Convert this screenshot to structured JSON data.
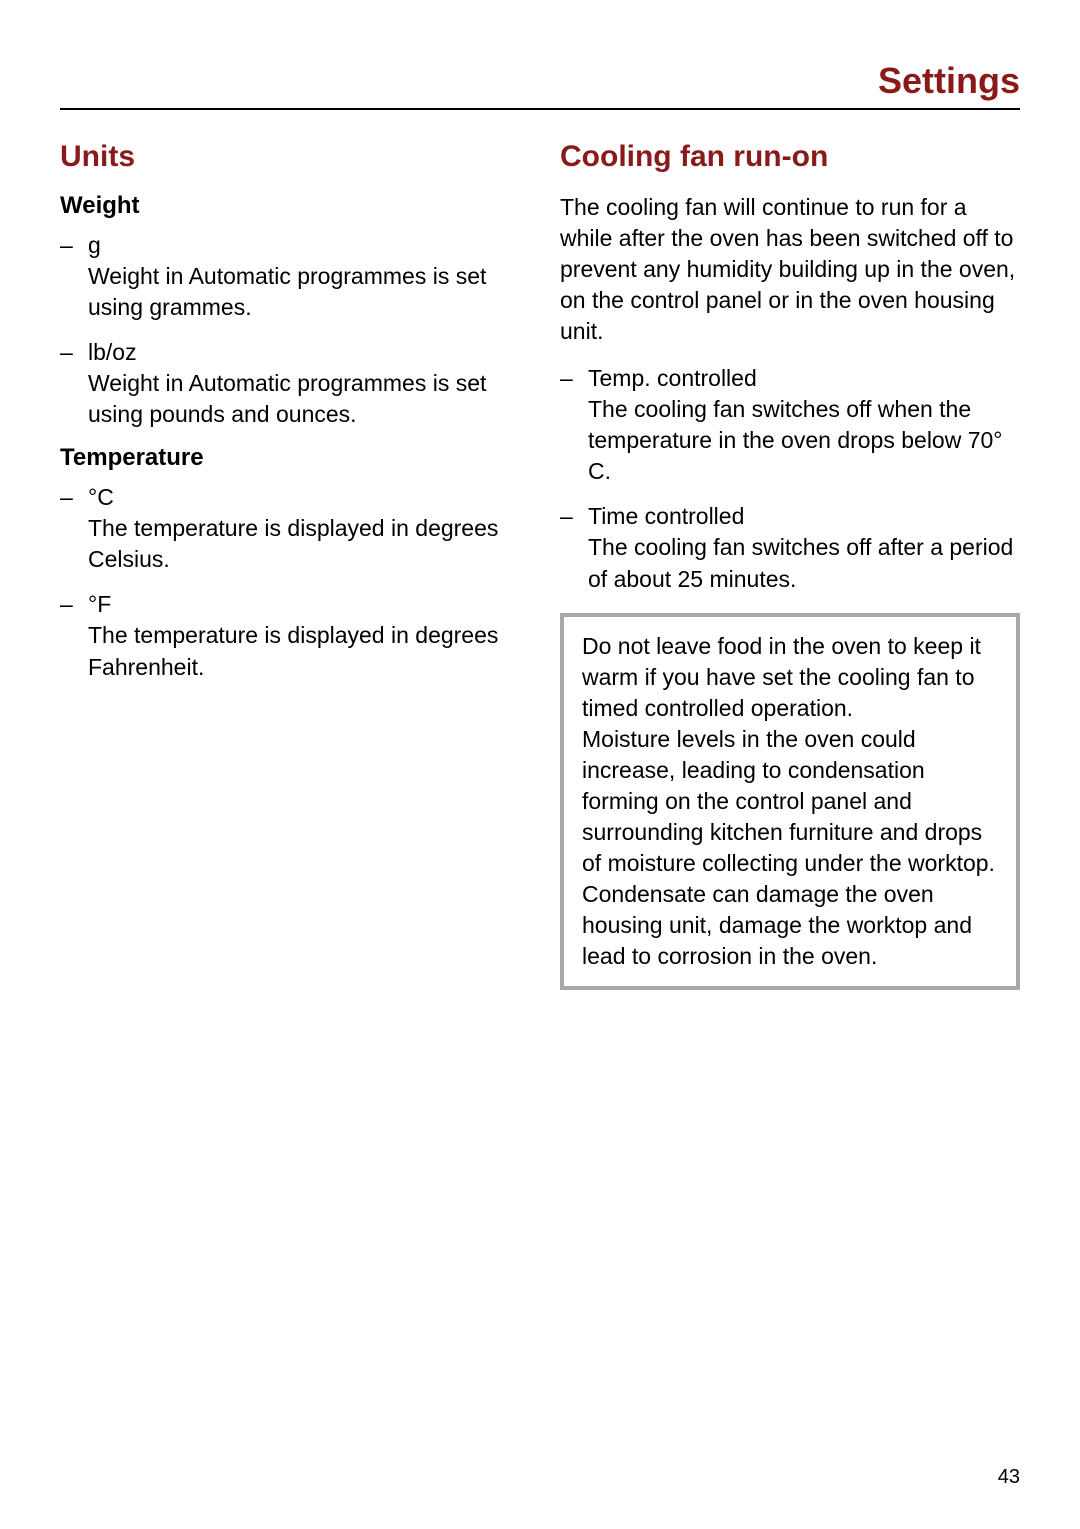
{
  "page": {
    "title": "Settings",
    "number": "43"
  },
  "left": {
    "heading": "Units",
    "weight": {
      "subheading": "Weight",
      "items": [
        {
          "label": "g",
          "desc": "Weight in Automatic programmes is set using grammes."
        },
        {
          "label": "lb/oz",
          "desc": "Weight in Automatic programmes is set using pounds and ounces."
        }
      ]
    },
    "temperature": {
      "subheading": "Temperature",
      "items": [
        {
          "label": "°C",
          "desc": "The temperature is displayed in degrees Celsius."
        },
        {
          "label": "°F",
          "desc": "The temperature is displayed in degrees Fahrenheit."
        }
      ]
    }
  },
  "right": {
    "heading": "Cooling fan run-on",
    "intro": "The cooling fan will continue to run for a while after the oven has been switched off to prevent any humidity building up in the oven, on the control panel or in the oven housing unit.",
    "items": [
      {
        "label": "Temp. controlled",
        "desc": "The cooling fan switches off when the temperature in the oven drops below 70° C."
      },
      {
        "label": "Time controlled",
        "desc": "The cooling fan switches off after a period of about 25 minutes."
      }
    ],
    "note": {
      "p1": "Do not leave food in the oven to keep it warm if you have set the cooling fan to timed controlled operation.",
      "p2": "Moisture levels in the oven could increase, leading to condensation forming on the control panel and surrounding kitchen furniture and drops of moisture collecting under the worktop.",
      "p3": "Condensate can damage the oven housing unit, damage the worktop and lead to corrosion in the oven."
    }
  },
  "colors": {
    "heading": "#8a1919",
    "rule": "#000000",
    "note_border": "#a8a8a8",
    "background": "#ffffff",
    "text": "#000000"
  },
  "typography": {
    "page_title_pt": 36,
    "section_heading_pt": 30,
    "sub_heading_pt": 24,
    "body_pt": 23,
    "page_number_pt": 20,
    "font_family": "Arial"
  }
}
